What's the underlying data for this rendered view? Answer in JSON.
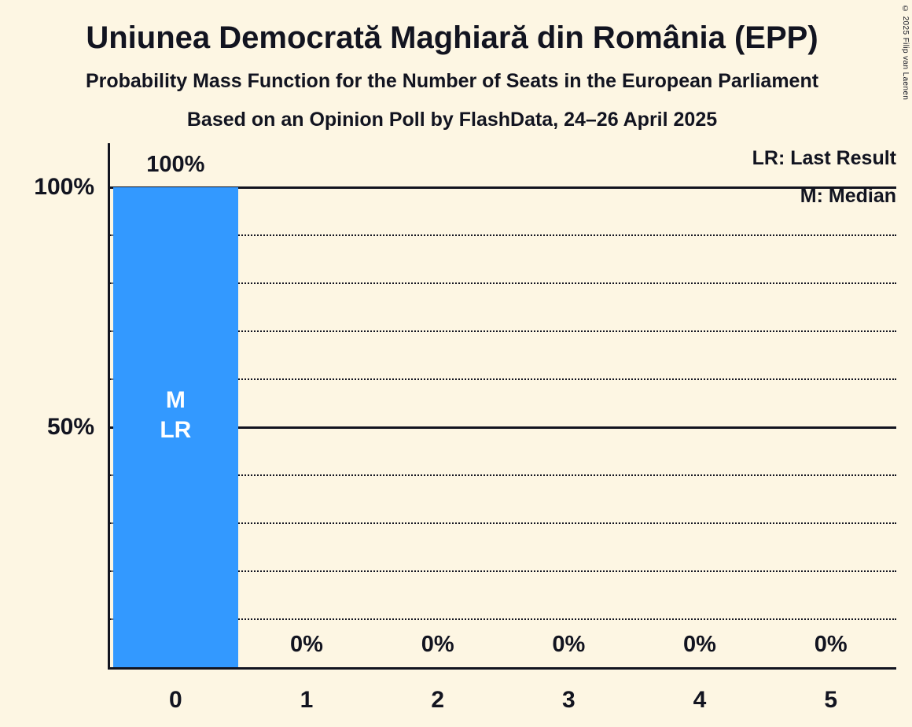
{
  "title": "Uniunea Democrată Maghiară din România (EPP)",
  "subtitle1": "Probability Mass Function for the Number of Seats in the European Parliament",
  "subtitle2": "Based on an Opinion Poll by FlashData, 24–26 April 2025",
  "copyright": "© 2025 Filip van Laenen",
  "legend": {
    "lr": "LR: Last Result",
    "m": "M: Median"
  },
  "colors": {
    "background": "#fdf6e3",
    "bar": "#3399ff",
    "text": "#121420",
    "annotation_text": "#ffffff"
  },
  "chart_data": {
    "type": "bar",
    "categories": [
      "0",
      "1",
      "2",
      "3",
      "4",
      "5"
    ],
    "values": [
      100,
      0,
      0,
      0,
      0,
      0
    ],
    "bar_labels": [
      "100%",
      "0%",
      "0%",
      "0%",
      "0%",
      "0%"
    ],
    "title": "Uniunea Democrată Maghiară din România (EPP)",
    "ylim": [
      0,
      100
    ],
    "yticks": [
      {
        "value": 100,
        "label": "100%"
      },
      {
        "value": 50,
        "label": "50%"
      }
    ],
    "gridlines": {
      "solid": [
        50,
        100
      ],
      "dotted": [
        10,
        20,
        30,
        40,
        60,
        70,
        80,
        90
      ]
    },
    "legend_position": "top-right",
    "annotations": [
      {
        "category_index": 0,
        "lines": [
          "M",
          "LR"
        ]
      }
    ]
  }
}
